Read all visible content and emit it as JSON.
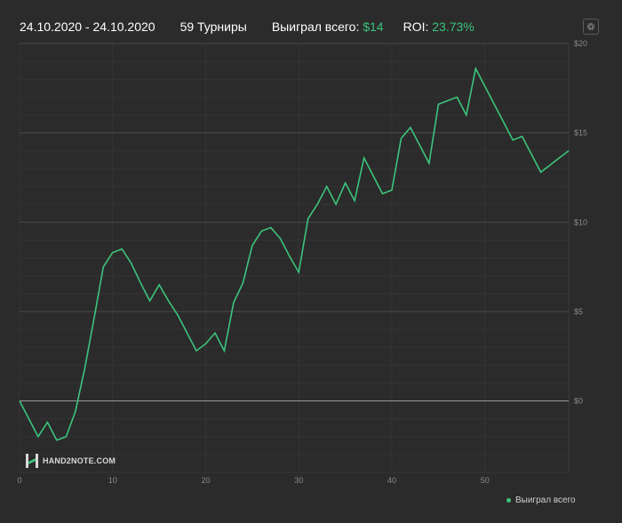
{
  "header": {
    "date_range": "24.10.2020 - 24.10.2020",
    "tournaments": "59 Турниры",
    "won_label": "Выиграл всего:",
    "won_value": "$14",
    "roi_label": "ROI:",
    "roi_value": "23.73%"
  },
  "watermark": "HAND2NOTE.COM",
  "icons": {
    "settings": "gear-icon",
    "logo": "hand2note-logo"
  },
  "colors": {
    "background": "#2b2b2b",
    "line": "#3cc47c",
    "accent": "#3cc47c",
    "zero_line": "#9a9a9a",
    "grid": "#3a3a3a"
  },
  "chart_data": {
    "type": "line",
    "title": "",
    "xlabel": "",
    "ylabel": "",
    "xlim": [
      0,
      59
    ],
    "ylim": [
      -4,
      20
    ],
    "x_ticks": [
      0,
      10,
      20,
      30,
      40,
      50
    ],
    "x_tick_labels": [
      "0",
      "10",
      "20",
      "30",
      "40",
      "50"
    ],
    "y_ticks": [
      0,
      5,
      10,
      15,
      20
    ],
    "y_tick_labels": [
      "$0",
      "$5",
      "$10",
      "$15",
      "$20"
    ],
    "grid": true,
    "legend_position": "bottom-right",
    "series": [
      {
        "name": "Выиграл всего",
        "x": [
          0,
          1,
          2,
          3,
          4,
          5,
          6,
          7,
          8,
          9,
          10,
          11,
          12,
          13,
          14,
          15,
          16,
          17,
          18,
          19,
          20,
          21,
          22,
          23,
          24,
          25,
          26,
          27,
          28,
          29,
          30,
          31,
          32,
          33,
          34,
          35,
          36,
          37,
          38,
          39,
          40,
          41,
          42,
          43,
          44,
          45,
          46,
          47,
          48,
          49,
          50,
          51,
          52,
          53,
          54,
          55,
          56,
          57,
          58,
          59
        ],
        "y": [
          0,
          -1,
          -2,
          -1.2,
          -2.2,
          -2,
          -0.6,
          1.8,
          4.6,
          7.5,
          8.3,
          8.5,
          7.7,
          6.6,
          5.6,
          6.5,
          5.6,
          4.8,
          3.8,
          2.8,
          3.2,
          3.8,
          2.8,
          5.5,
          6.6,
          8.7,
          9.5,
          9.7,
          9.1,
          8.1,
          7.2,
          10.2,
          11,
          12,
          11,
          12.2,
          11.2,
          13.6,
          12.6,
          11.6,
          11.8,
          14.7,
          15.3,
          14.3,
          13.3,
          16.6,
          16.8,
          17,
          16,
          18.6,
          17.6,
          16.6,
          15.6,
          14.6,
          14.8,
          13.8,
          12.8,
          13.2,
          13.6,
          14
        ]
      }
    ]
  }
}
